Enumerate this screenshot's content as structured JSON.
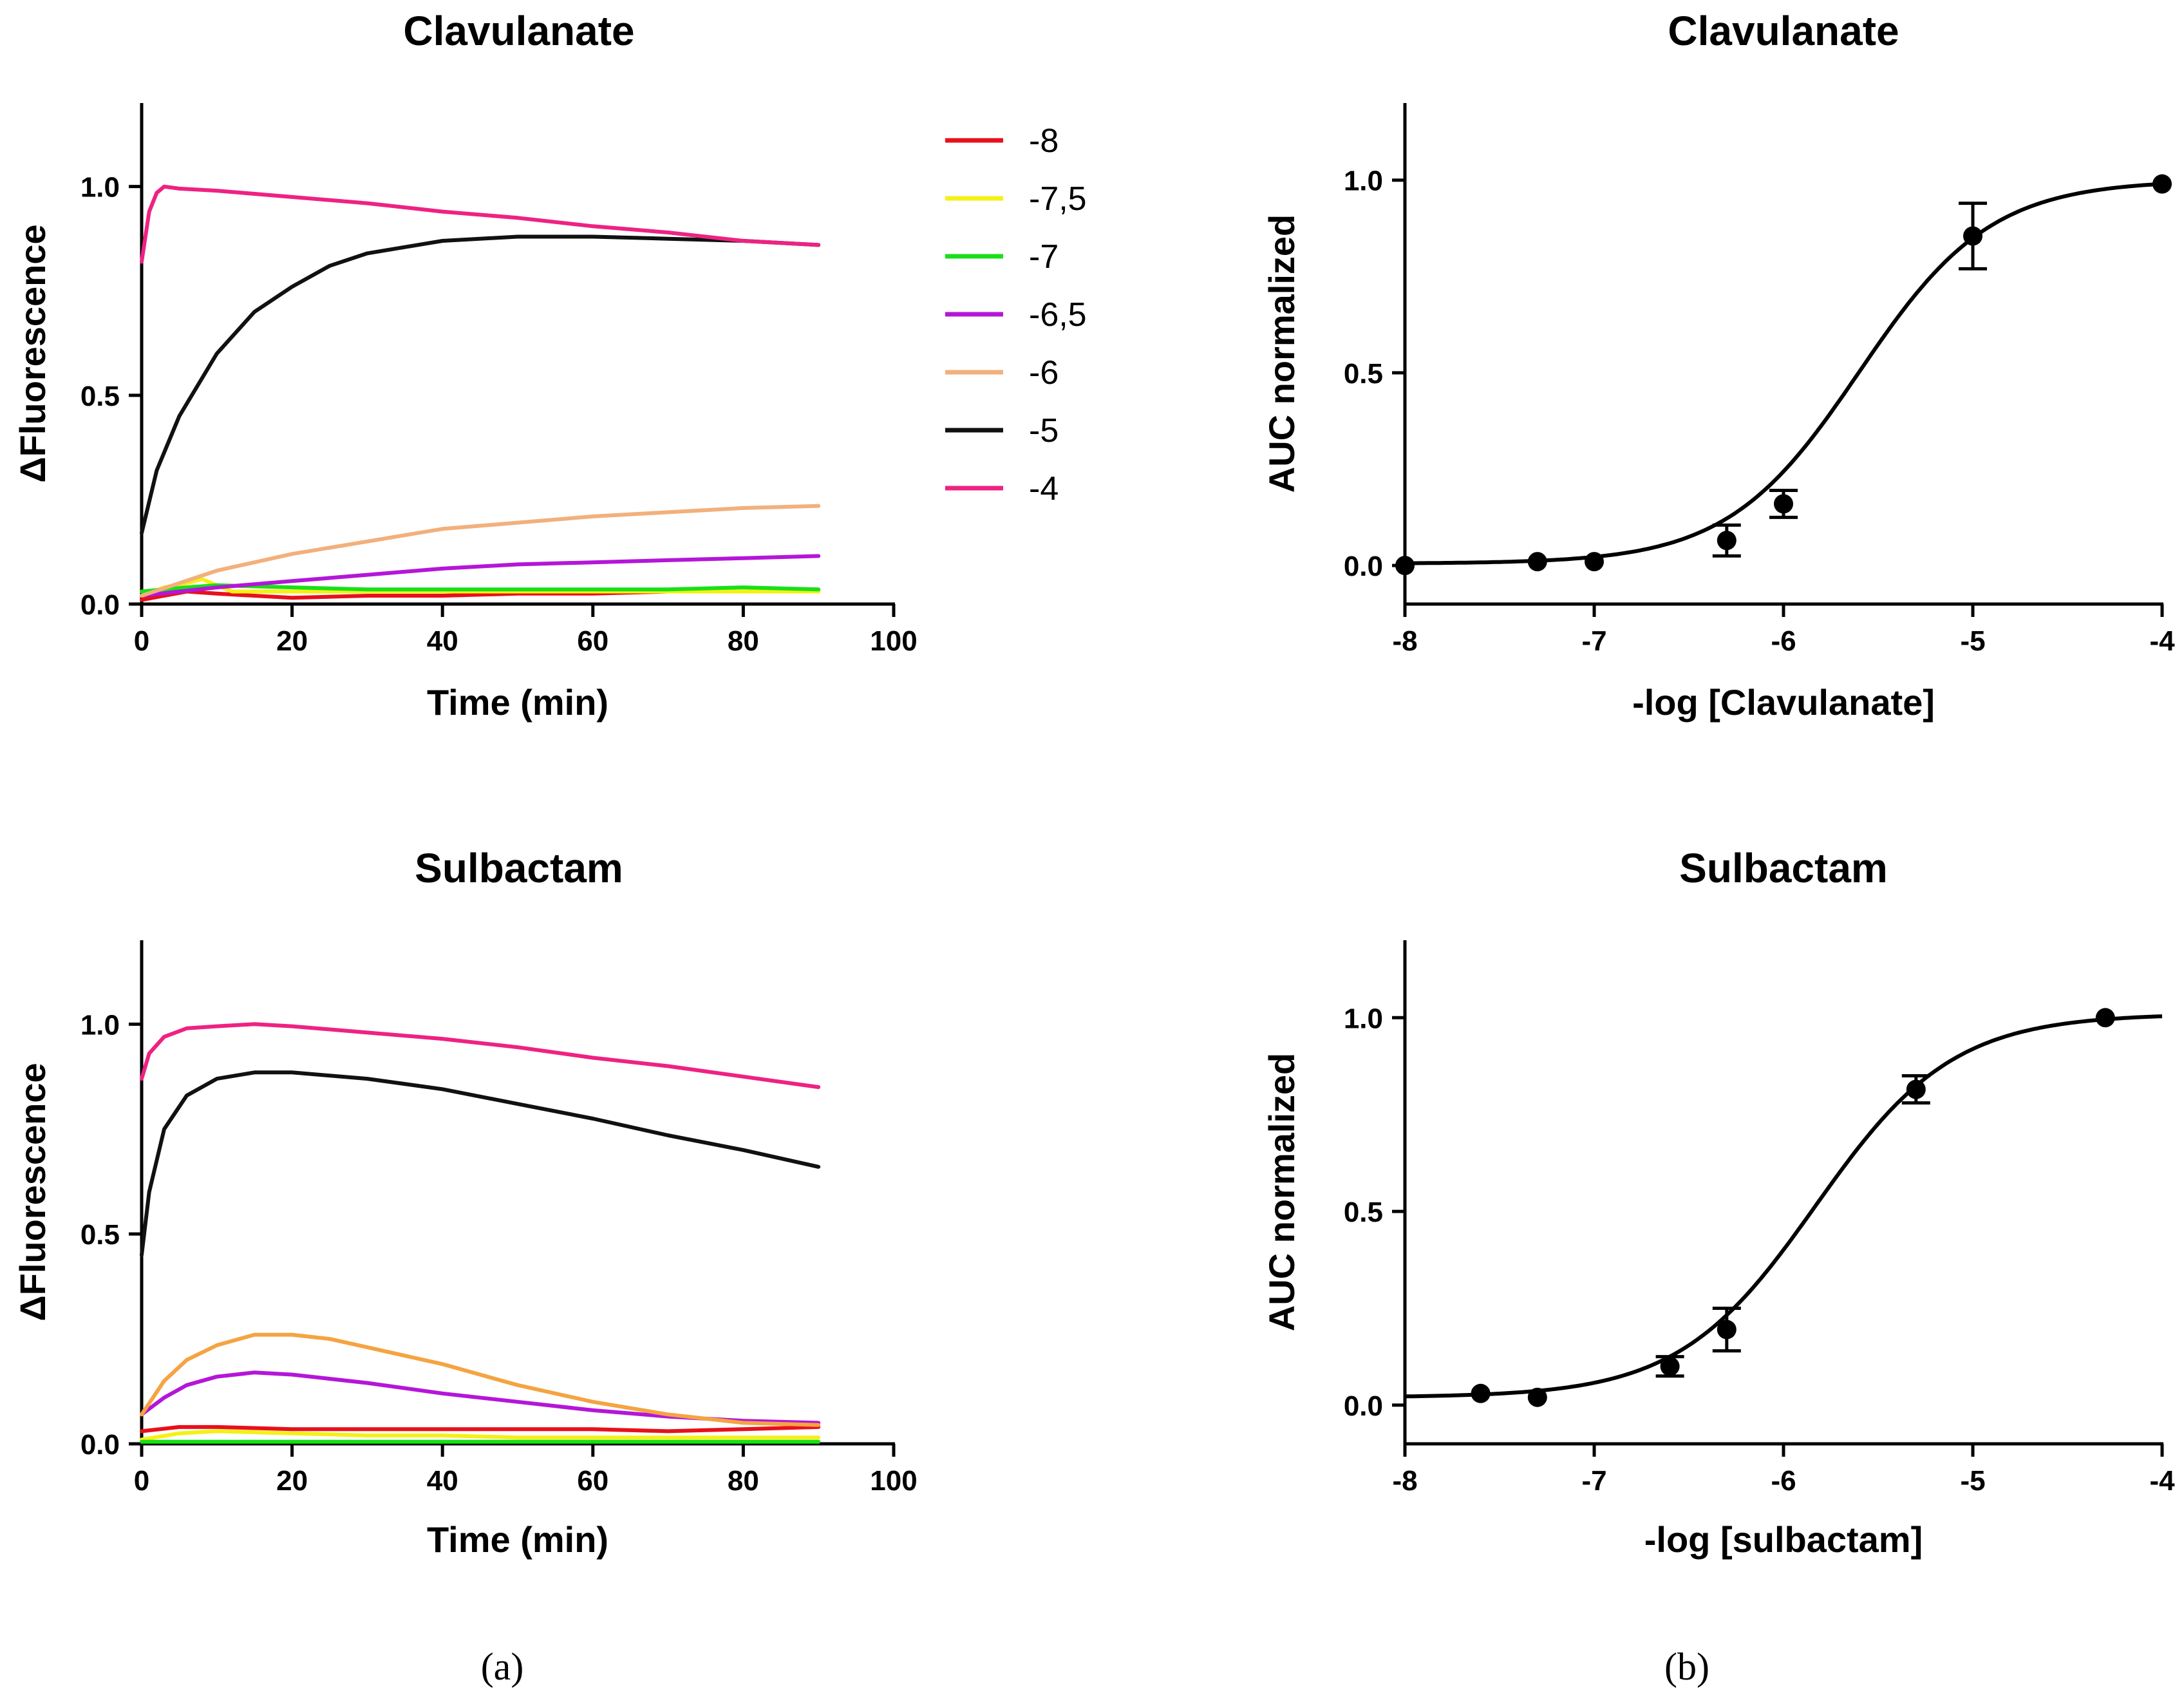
{
  "chart_data": [
    {
      "id": "kin-clav",
      "type": "line",
      "title": "Clavulanate",
      "xlabel": "Time (min)",
      "ylabel": "ΔFluorescence",
      "xlim": [
        0,
        100
      ],
      "ylim": [
        0,
        1.2
      ],
      "xticks": [
        0,
        20,
        40,
        60,
        80,
        100
      ],
      "yticks": [
        0,
        0.5,
        1
      ],
      "ytick_labels": [
        "0.0",
        "0.5",
        "1.0"
      ],
      "series": [
        {
          "name": "-8",
          "color": "#e8101a",
          "x": [
            0,
            3,
            6,
            10,
            20,
            30,
            40,
            50,
            60,
            70,
            80,
            90
          ],
          "y": [
            0.01,
            0.02,
            0.03,
            0.025,
            0.015,
            0.02,
            0.02,
            0.025,
            0.025,
            0.03,
            0.03,
            0.03
          ]
        },
        {
          "name": "-7,5",
          "color": "#f5f016",
          "x": [
            0,
            3,
            6,
            8,
            10,
            12,
            20,
            40,
            60,
            80,
            90
          ],
          "y": [
            0.02,
            0.04,
            0.05,
            0.06,
            0.045,
            0.03,
            0.03,
            0.03,
            0.03,
            0.03,
            0.03
          ]
        },
        {
          "name": "-7",
          "color": "#18e018",
          "x": [
            0,
            3,
            6,
            10,
            20,
            30,
            40,
            50,
            60,
            70,
            80,
            90
          ],
          "y": [
            0.03,
            0.035,
            0.04,
            0.045,
            0.04,
            0.035,
            0.035,
            0.035,
            0.035,
            0.035,
            0.04,
            0.035
          ]
        },
        {
          "name": "-6,5",
          "color": "#b416d8",
          "x": [
            0,
            5,
            10,
            20,
            30,
            40,
            50,
            60,
            70,
            80,
            90
          ],
          "y": [
            0.02,
            0.03,
            0.04,
            0.055,
            0.07,
            0.085,
            0.095,
            0.1,
            0.105,
            0.11,
            0.115
          ]
        },
        {
          "name": "-6",
          "color": "#f2b07c",
          "x": [
            0,
            5,
            10,
            20,
            30,
            40,
            50,
            60,
            70,
            80,
            90
          ],
          "y": [
            0.02,
            0.05,
            0.08,
            0.12,
            0.15,
            0.18,
            0.195,
            0.21,
            0.22,
            0.23,
            0.235
          ]
        },
        {
          "name": "-5",
          "color": "#111111",
          "x": [
            0,
            2,
            5,
            10,
            15,
            20,
            25,
            30,
            40,
            50,
            60,
            70,
            80,
            90
          ],
          "y": [
            0.17,
            0.32,
            0.45,
            0.6,
            0.7,
            0.76,
            0.81,
            0.84,
            0.87,
            0.88,
            0.88,
            0.875,
            0.87,
            0.86
          ]
        },
        {
          "name": "-4",
          "color": "#ee2282",
          "x": [
            0,
            1,
            2,
            3,
            5,
            10,
            20,
            30,
            40,
            50,
            60,
            70,
            80,
            90
          ],
          "y": [
            0.82,
            0.94,
            0.985,
            1.0,
            0.995,
            0.99,
            0.975,
            0.96,
            0.94,
            0.925,
            0.905,
            0.89,
            0.87,
            0.86
          ]
        }
      ]
    },
    {
      "id": "dose-clav",
      "type": "scatter",
      "title": "Clavulanate",
      "xlabel": "-log  [Clavulanate]",
      "ylabel": "AUC normalized",
      "xlim": [
        -8,
        -4
      ],
      "ylim": [
        -0.1,
        1.2
      ],
      "xticks": [
        -8,
        -7,
        -6,
        -5,
        -4
      ],
      "yticks": [
        0,
        0.5,
        1
      ],
      "ytick_labels": [
        "0.0",
        "0.5",
        "1.0"
      ],
      "points": {
        "x": [
          -8,
          -7.3,
          -7,
          -6.3,
          -6,
          -5,
          -4
        ],
        "y": [
          0.0,
          0.01,
          0.01,
          0.065,
          0.16,
          0.855,
          0.99
        ],
        "err": [
          0,
          0,
          0,
          0.04,
          0.035,
          0.085,
          0
        ]
      },
      "fit": {
        "model": "sigmoid",
        "bottom": 0.005,
        "top": 1.0,
        "logEC50": -5.6,
        "hill": 1.25
      }
    },
    {
      "id": "kin-sulb",
      "type": "line",
      "title": "Sulbactam",
      "xlabel": "Time (min)",
      "ylabel": "ΔFluorescence",
      "xlim": [
        0,
        100
      ],
      "ylim": [
        0,
        1.2
      ],
      "xticks": [
        0,
        20,
        40,
        60,
        80,
        100
      ],
      "yticks": [
        0,
        0.5,
        1
      ],
      "ytick_labels": [
        "0.0",
        "0.5",
        "1.0"
      ],
      "series": [
        {
          "name": "-8",
          "color": "#e8101a",
          "x": [
            0,
            5,
            10,
            20,
            30,
            40,
            50,
            60,
            70,
            80,
            90
          ],
          "y": [
            0.03,
            0.04,
            0.04,
            0.035,
            0.035,
            0.035,
            0.035,
            0.035,
            0.03,
            0.035,
            0.04
          ]
        },
        {
          "name": "-7,5",
          "color": "#f5f016",
          "x": [
            0,
            5,
            10,
            20,
            30,
            40,
            50,
            60,
            70,
            80,
            90
          ],
          "y": [
            0.01,
            0.025,
            0.03,
            0.025,
            0.02,
            0.02,
            0.015,
            0.015,
            0.015,
            0.015,
            0.015
          ]
        },
        {
          "name": "-7",
          "color": "#18e018",
          "x": [
            0,
            10,
            20,
            30,
            40,
            50,
            60,
            70,
            80,
            90
          ],
          "y": [
            0.005,
            0.005,
            0.005,
            0.005,
            0.005,
            0.005,
            0.005,
            0.005,
            0.005,
            0.005
          ]
        },
        {
          "name": "-6,5",
          "color": "#b416d8",
          "x": [
            0,
            3,
            6,
            10,
            15,
            20,
            30,
            40,
            50,
            60,
            70,
            80,
            90
          ],
          "y": [
            0.07,
            0.11,
            0.14,
            0.16,
            0.17,
            0.165,
            0.145,
            0.12,
            0.1,
            0.08,
            0.065,
            0.055,
            0.05
          ]
        },
        {
          "name": "-6",
          "color": "#f4a442",
          "x": [
            0,
            3,
            6,
            10,
            15,
            20,
            25,
            30,
            40,
            50,
            60,
            70,
            80,
            90
          ],
          "y": [
            0.07,
            0.15,
            0.2,
            0.235,
            0.26,
            0.26,
            0.25,
            0.23,
            0.19,
            0.14,
            0.1,
            0.07,
            0.05,
            0.045
          ]
        },
        {
          "name": "-5",
          "color": "#111111",
          "x": [
            0,
            1,
            3,
            6,
            10,
            15,
            20,
            30,
            40,
            50,
            60,
            70,
            80,
            90
          ],
          "y": [
            0.45,
            0.6,
            0.75,
            0.83,
            0.87,
            0.885,
            0.885,
            0.87,
            0.845,
            0.81,
            0.775,
            0.735,
            0.7,
            0.66
          ]
        },
        {
          "name": "-4",
          "color": "#ee2282",
          "x": [
            0,
            1,
            3,
            6,
            10,
            15,
            20,
            30,
            40,
            50,
            60,
            70,
            80,
            90
          ],
          "y": [
            0.87,
            0.93,
            0.97,
            0.99,
            0.995,
            1.0,
            0.995,
            0.98,
            0.965,
            0.945,
            0.92,
            0.9,
            0.875,
            0.85
          ]
        }
      ]
    },
    {
      "id": "dose-sulb",
      "type": "scatter",
      "title": "Sulbactam",
      "xlabel": "-log [sulbactam]",
      "ylabel": "AUC normalized",
      "xlim": [
        -8,
        -4
      ],
      "ylim": [
        -0.1,
        1.2
      ],
      "xticks": [
        -8,
        -7,
        -6,
        -5,
        -4
      ],
      "yticks": [
        0,
        0.5,
        1
      ],
      "ytick_labels": [
        "0.0",
        "0.5",
        "1.0"
      ],
      "points": {
        "x": [
          -7.6,
          -7.3,
          -6.6,
          -6.3,
          -5.3,
          -4.3
        ],
        "y": [
          0.03,
          0.02,
          0.1,
          0.195,
          0.815,
          1.0
        ],
        "err": [
          0,
          0,
          0.025,
          0.055,
          0.035,
          0
        ]
      },
      "fit": {
        "model": "sigmoid",
        "bottom": 0.02,
        "top": 1.01,
        "logEC50": -5.83,
        "hill": 1.2
      }
    }
  ],
  "panel_labels": {
    "a": "(a)",
    "b": "(b)"
  }
}
